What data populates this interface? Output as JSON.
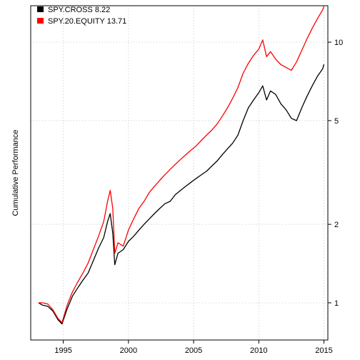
{
  "chart_data": {
    "type": "line",
    "title": "",
    "xlabel": "",
    "ylabel": "Cumulative Performance",
    "y_scale": "log",
    "grid": true,
    "legend_position": "top-left",
    "x_ticks": [
      "1995",
      "2000",
      "2005",
      "2010",
      "2015"
    ],
    "y_ticks": [
      "1",
      "2",
      "5",
      "10"
    ],
    "xlim": [
      1992.5,
      2015.3
    ],
    "ylim": [
      0.72,
      13.8
    ],
    "series": [
      {
        "name": "SPY.CROSS",
        "legend_label": "SPY.CROSS  8.22",
        "color": "#000000",
        "points": [
          [
            1993.1,
            1.0
          ],
          [
            1993.4,
            0.98
          ],
          [
            1993.8,
            0.97
          ],
          [
            1994.2,
            0.93
          ],
          [
            1994.6,
            0.86
          ],
          [
            1994.9,
            0.83
          ],
          [
            1995.3,
            0.95
          ],
          [
            1995.7,
            1.06
          ],
          [
            1996.1,
            1.14
          ],
          [
            1996.5,
            1.22
          ],
          [
            1996.9,
            1.3
          ],
          [
            1997.3,
            1.45
          ],
          [
            1997.7,
            1.62
          ],
          [
            1998.1,
            1.78
          ],
          [
            1998.4,
            2.05
          ],
          [
            1998.6,
            2.2
          ],
          [
            1998.8,
            1.85
          ],
          [
            1998.95,
            1.4
          ],
          [
            1999.2,
            1.55
          ],
          [
            1999.6,
            1.6
          ],
          [
            2000.0,
            1.72
          ],
          [
            2000.4,
            1.8
          ],
          [
            2000.8,
            1.9
          ],
          [
            2001.2,
            2.0
          ],
          [
            2001.6,
            2.1
          ],
          [
            2002.0,
            2.2
          ],
          [
            2002.4,
            2.3
          ],
          [
            2002.8,
            2.4
          ],
          [
            2003.2,
            2.45
          ],
          [
            2003.6,
            2.6
          ],
          [
            2004.0,
            2.7
          ],
          [
            2004.4,
            2.8
          ],
          [
            2004.8,
            2.9
          ],
          [
            2005.2,
            3.0
          ],
          [
            2005.6,
            3.1
          ],
          [
            2006.0,
            3.2
          ],
          [
            2006.4,
            3.35
          ],
          [
            2006.8,
            3.5
          ],
          [
            2007.2,
            3.7
          ],
          [
            2007.6,
            3.9
          ],
          [
            2008.0,
            4.1
          ],
          [
            2008.4,
            4.4
          ],
          [
            2008.8,
            5.0
          ],
          [
            2009.2,
            5.6
          ],
          [
            2009.6,
            6.0
          ],
          [
            2010.0,
            6.4
          ],
          [
            2010.3,
            6.8
          ],
          [
            2010.6,
            6.0
          ],
          [
            2010.9,
            6.5
          ],
          [
            2011.3,
            6.3
          ],
          [
            2011.7,
            5.8
          ],
          [
            2012.1,
            5.5
          ],
          [
            2012.5,
            5.1
          ],
          [
            2012.9,
            5.0
          ],
          [
            2013.3,
            5.6
          ],
          [
            2013.7,
            6.2
          ],
          [
            2014.1,
            6.8
          ],
          [
            2014.5,
            7.4
          ],
          [
            2014.9,
            7.9
          ],
          [
            2015.0,
            8.22
          ]
        ]
      },
      {
        "name": "SPY.20.EQUITY",
        "legend_label": "SPY.20.EQUITY 13.71",
        "color": "#ff0000",
        "points": [
          [
            1993.1,
            1.0
          ],
          [
            1993.4,
            1.0
          ],
          [
            1993.8,
            0.99
          ],
          [
            1994.2,
            0.94
          ],
          [
            1994.6,
            0.87
          ],
          [
            1994.9,
            0.84
          ],
          [
            1995.3,
            0.98
          ],
          [
            1995.7,
            1.1
          ],
          [
            1996.1,
            1.2
          ],
          [
            1996.5,
            1.3
          ],
          [
            1996.9,
            1.42
          ],
          [
            1997.3,
            1.6
          ],
          [
            1997.7,
            1.8
          ],
          [
            1998.1,
            2.05
          ],
          [
            1998.4,
            2.45
          ],
          [
            1998.6,
            2.7
          ],
          [
            1998.8,
            2.3
          ],
          [
            1998.95,
            1.55
          ],
          [
            1999.2,
            1.7
          ],
          [
            1999.6,
            1.65
          ],
          [
            2000.0,
            1.9
          ],
          [
            2000.4,
            2.1
          ],
          [
            2000.8,
            2.3
          ],
          [
            2001.2,
            2.45
          ],
          [
            2001.6,
            2.65
          ],
          [
            2002.0,
            2.8
          ],
          [
            2002.4,
            2.95
          ],
          [
            2002.8,
            3.1
          ],
          [
            2003.2,
            3.25
          ],
          [
            2003.6,
            3.4
          ],
          [
            2004.0,
            3.55
          ],
          [
            2004.4,
            3.7
          ],
          [
            2004.8,
            3.85
          ],
          [
            2005.2,
            4.0
          ],
          [
            2005.6,
            4.2
          ],
          [
            2006.0,
            4.4
          ],
          [
            2006.4,
            4.6
          ],
          [
            2006.8,
            4.85
          ],
          [
            2007.2,
            5.2
          ],
          [
            2007.6,
            5.6
          ],
          [
            2008.0,
            6.1
          ],
          [
            2008.4,
            6.7
          ],
          [
            2008.8,
            7.6
          ],
          [
            2009.2,
            8.3
          ],
          [
            2009.6,
            8.9
          ],
          [
            2010.0,
            9.4
          ],
          [
            2010.3,
            10.2
          ],
          [
            2010.6,
            8.8
          ],
          [
            2010.9,
            9.2
          ],
          [
            2011.3,
            8.6
          ],
          [
            2011.7,
            8.2
          ],
          [
            2012.1,
            8.0
          ],
          [
            2012.5,
            7.8
          ],
          [
            2012.9,
            8.4
          ],
          [
            2013.3,
            9.3
          ],
          [
            2013.7,
            10.3
          ],
          [
            2014.1,
            11.3
          ],
          [
            2014.5,
            12.3
          ],
          [
            2014.9,
            13.3
          ],
          [
            2015.0,
            13.71
          ]
        ]
      }
    ]
  }
}
